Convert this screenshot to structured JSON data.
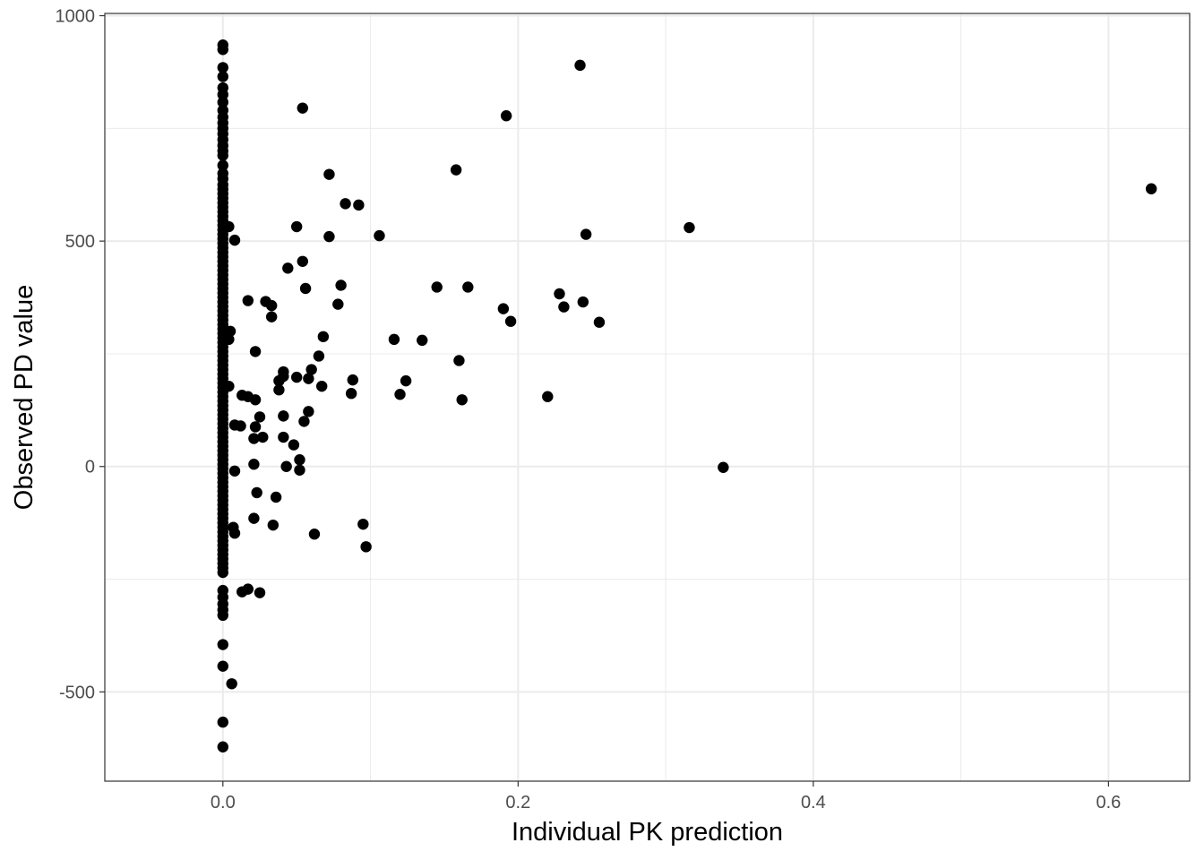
{
  "chart_data": {
    "type": "scatter",
    "xlabel": "Individual PK prediction",
    "ylabel": "Observed PD value",
    "xlim": [
      -0.08,
      0.655
    ],
    "ylim": [
      -698,
      1005
    ],
    "x_ticks": [
      0.0,
      0.2,
      0.4,
      0.6
    ],
    "x_tick_labels": [
      "0.0",
      "0.2",
      "0.4",
      "0.6"
    ],
    "y_ticks": [
      -500,
      0,
      500,
      1000
    ],
    "y_tick_labels": [
      "-500",
      "0",
      "500",
      "1000"
    ],
    "grid": true,
    "theme": "black-and-white",
    "point_color": "#000000",
    "grid_color": "#ebebeb",
    "column_at_zero_x": 0.0,
    "column_at_zero_y": [
      935,
      925,
      885,
      865,
      840,
      825,
      808,
      790,
      775,
      762,
      750,
      738,
      725,
      712,
      700,
      690,
      668,
      650,
      638,
      625,
      615,
      605,
      595,
      585,
      575,
      565,
      555,
      545,
      535,
      525,
      515,
      505,
      495,
      485,
      475,
      465,
      455,
      445,
      435,
      425,
      415,
      405,
      395,
      385,
      375,
      365,
      355,
      345,
      335,
      325,
      315,
      305,
      295,
      285,
      275,
      265,
      255,
      245,
      235,
      225,
      215,
      205,
      195,
      185,
      175,
      165,
      155,
      145,
      135,
      125,
      115,
      105,
      95,
      85,
      75,
      65,
      55,
      45,
      35,
      25,
      15,
      5,
      -5,
      -15,
      -25,
      -35,
      -45,
      -55,
      -65,
      -75,
      -85,
      -95,
      -105,
      -115,
      -125,
      -135,
      -145,
      -155,
      -165,
      -175,
      -185,
      -195,
      -205,
      -215,
      -225,
      -235,
      -275,
      -290,
      -305,
      -318,
      -330,
      -395,
      -443,
      -567,
      -622
    ],
    "points": [
      {
        "x": 0.004,
        "y": 532
      },
      {
        "x": 0.008,
        "y": 502
      },
      {
        "x": 0.005,
        "y": 300
      },
      {
        "x": 0.004,
        "y": 282
      },
      {
        "x": 0.004,
        "y": 178
      },
      {
        "x": 0.008,
        "y": 92
      },
      {
        "x": 0.012,
        "y": 90
      },
      {
        "x": 0.008,
        "y": -10
      },
      {
        "x": 0.007,
        "y": -135
      },
      {
        "x": 0.008,
        "y": -148
      },
      {
        "x": 0.006,
        "y": -482
      },
      {
        "x": 0.013,
        "y": -278
      },
      {
        "x": 0.017,
        "y": -272
      },
      {
        "x": 0.017,
        "y": 368
      },
      {
        "x": 0.013,
        "y": 158
      },
      {
        "x": 0.017,
        "y": 155
      },
      {
        "x": 0.022,
        "y": 255
      },
      {
        "x": 0.022,
        "y": 148
      },
      {
        "x": 0.022,
        "y": 88
      },
      {
        "x": 0.025,
        "y": 110
      },
      {
        "x": 0.021,
        "y": 62
      },
      {
        "x": 0.027,
        "y": 65
      },
      {
        "x": 0.021,
        "y": 5
      },
      {
        "x": 0.023,
        "y": -58
      },
      {
        "x": 0.021,
        "y": -115
      },
      {
        "x": 0.025,
        "y": -280
      },
      {
        "x": 0.029,
        "y": 366
      },
      {
        "x": 0.033,
        "y": 357
      },
      {
        "x": 0.033,
        "y": 332
      },
      {
        "x": 0.034,
        "y": -130
      },
      {
        "x": 0.036,
        "y": -68
      },
      {
        "x": 0.038,
        "y": 170
      },
      {
        "x": 0.038,
        "y": 190
      },
      {
        "x": 0.041,
        "y": 210
      },
      {
        "x": 0.041,
        "y": 200
      },
      {
        "x": 0.041,
        "y": 112
      },
      {
        "x": 0.041,
        "y": 65
      },
      {
        "x": 0.043,
        "y": 0
      },
      {
        "x": 0.044,
        "y": 440
      },
      {
        "x": 0.048,
        "y": 48
      },
      {
        "x": 0.05,
        "y": 532
      },
      {
        "x": 0.05,
        "y": 198
      },
      {
        "x": 0.052,
        "y": 15
      },
      {
        "x": 0.052,
        "y": -8
      },
      {
        "x": 0.054,
        "y": 795
      },
      {
        "x": 0.054,
        "y": 455
      },
      {
        "x": 0.056,
        "y": 395
      },
      {
        "x": 0.055,
        "y": 100
      },
      {
        "x": 0.058,
        "y": 122
      },
      {
        "x": 0.058,
        "y": 195
      },
      {
        "x": 0.06,
        "y": 215
      },
      {
        "x": 0.062,
        "y": -150
      },
      {
        "x": 0.065,
        "y": 245
      },
      {
        "x": 0.067,
        "y": 178
      },
      {
        "x": 0.068,
        "y": 288
      },
      {
        "x": 0.072,
        "y": 648
      },
      {
        "x": 0.072,
        "y": 510
      },
      {
        "x": 0.078,
        "y": 360
      },
      {
        "x": 0.08,
        "y": 402
      },
      {
        "x": 0.083,
        "y": 583
      },
      {
        "x": 0.088,
        "y": 192
      },
      {
        "x": 0.087,
        "y": 162
      },
      {
        "x": 0.092,
        "y": 580
      },
      {
        "x": 0.095,
        "y": -128
      },
      {
        "x": 0.097,
        "y": -178
      },
      {
        "x": 0.106,
        "y": 512
      },
      {
        "x": 0.116,
        "y": 282
      },
      {
        "x": 0.12,
        "y": 160
      },
      {
        "x": 0.124,
        "y": 190
      },
      {
        "x": 0.135,
        "y": 280
      },
      {
        "x": 0.145,
        "y": 398
      },
      {
        "x": 0.158,
        "y": 658
      },
      {
        "x": 0.16,
        "y": 235
      },
      {
        "x": 0.162,
        "y": 148
      },
      {
        "x": 0.166,
        "y": 398
      },
      {
        "x": 0.19,
        "y": 350
      },
      {
        "x": 0.192,
        "y": 778
      },
      {
        "x": 0.195,
        "y": 322
      },
      {
        "x": 0.22,
        "y": 155
      },
      {
        "x": 0.228,
        "y": 383
      },
      {
        "x": 0.231,
        "y": 354
      },
      {
        "x": 0.242,
        "y": 890
      },
      {
        "x": 0.244,
        "y": 365
      },
      {
        "x": 0.246,
        "y": 515
      },
      {
        "x": 0.255,
        "y": 320
      },
      {
        "x": 0.316,
        "y": 530
      },
      {
        "x": 0.339,
        "y": -2
      },
      {
        "x": 0.629,
        "y": 616
      }
    ]
  }
}
